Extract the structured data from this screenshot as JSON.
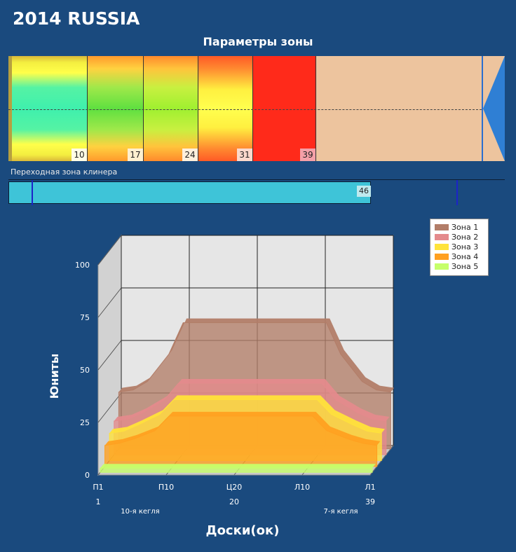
{
  "header": {
    "title": "2014 RUSSIA",
    "zone_params_title": "Параметры зоны",
    "transition_label": "Переходная зона клинера",
    "transition_value": "46"
  },
  "zone_segments": [
    {
      "label": "10",
      "label_bg": "#fffde6"
    },
    {
      "label": "17",
      "label_bg": "#fff0d0"
    },
    {
      "label": "24",
      "label_bg": "#fff0dc"
    },
    {
      "label": "31",
      "label_bg": "#fbd9cc"
    },
    {
      "label": "39",
      "label_bg": "#f4a0a8"
    }
  ],
  "colors": {
    "background": "#1a4a7e",
    "zone1": "#b27d68",
    "zone2": "#e48a8c",
    "zone3": "#ffe33a",
    "zone4": "#ffa020",
    "zone5": "#c6ff6a",
    "transition": "#3ec4d8",
    "tail": "#edc49e"
  },
  "chart_data": {
    "type": "area",
    "title": "",
    "xlabel": "Доски(ок)",
    "ylabel": "Юниты",
    "ylim": [
      0,
      100
    ],
    "yticks": [
      "0",
      "25",
      "50",
      "75",
      "100"
    ],
    "categories": [
      "П1",
      "П10",
      "Ц20",
      "Л10",
      "Л1"
    ],
    "x_numbers": [
      "1",
      "",
      "20",
      "",
      "39"
    ],
    "bottom_notes": [
      "10-я кегля",
      "7-я кегля"
    ],
    "x": [
      1,
      3,
      5,
      8,
      10,
      12,
      15,
      20,
      25,
      28,
      30,
      32,
      35,
      37,
      39
    ],
    "series": [
      {
        "name": "Зона 1",
        "values": [
          27,
          28,
          32,
          45,
          60,
          60,
          60,
          60,
          60,
          60,
          60,
          45,
          32,
          28,
          27
        ]
      },
      {
        "name": "Зона 2",
        "values": [
          16,
          17,
          20,
          26,
          34,
          34,
          34,
          34,
          34,
          34,
          34,
          26,
          20,
          17,
          16
        ]
      },
      {
        "name": "Зона 3",
        "values": [
          13,
          14,
          17,
          22,
          29,
          29,
          29,
          29,
          29,
          29,
          29,
          22,
          17,
          14,
          13
        ]
      },
      {
        "name": "Зона 4",
        "values": [
          10,
          11,
          13,
          17,
          24,
          24,
          24,
          24,
          24,
          24,
          24,
          17,
          13,
          11,
          10
        ]
      },
      {
        "name": "Зона 5",
        "values": [
          2,
          2,
          2,
          2,
          2,
          2,
          2,
          2,
          2,
          2,
          2,
          2,
          2,
          2,
          2
        ]
      }
    ]
  }
}
